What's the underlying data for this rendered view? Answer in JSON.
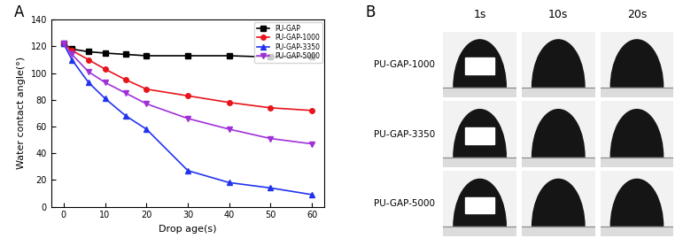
{
  "chart_data": {
    "type": "line",
    "annotations": [
      "A"
    ],
    "x_label": "Drop age(s)",
    "y_label": "Water contact angle(°)",
    "x": [
      0,
      2,
      6,
      10,
      15,
      20,
      30,
      40,
      50,
      60
    ],
    "series": [
      {
        "name": "PU-GAP",
        "color": "#000000",
        "marker": "square",
        "values": [
          122,
          118,
          116,
          115,
          114,
          113,
          113,
          113,
          112,
          112
        ]
      },
      {
        "name": "PU-GAP-1000",
        "color": "#e8141c",
        "marker": "circle",
        "values": [
          122,
          117,
          110,
          103,
          95,
          88,
          83,
          78,
          74,
          72
        ]
      },
      {
        "name": "PU-GAP-3350",
        "color": "#2233ee",
        "marker": "triangle_up",
        "values": [
          122,
          110,
          93,
          81,
          68,
          58,
          27,
          18,
          14,
          9
        ]
      },
      {
        "name": "PU-GAP-5000",
        "color": "#a030d8",
        "marker": "triangle_down",
        "values": [
          122,
          114,
          101,
          93,
          85,
          77,
          66,
          58,
          51,
          47
        ]
      }
    ],
    "xlim": [
      -3,
      63
    ],
    "xticks": [
      0,
      10,
      20,
      30,
      40,
      50,
      60
    ],
    "ylim": [
      0,
      140
    ],
    "yticks": [
      0,
      20,
      40,
      60,
      80,
      100,
      120,
      140
    ],
    "grid": false,
    "legend": "upper right"
  },
  "image_grid": {
    "label": "B",
    "columns": [
      "1s",
      "10s",
      "20s"
    ],
    "rows": [
      "PU-GAP-1000",
      "PU-GAP-3350",
      "PU-GAP-5000"
    ]
  }
}
